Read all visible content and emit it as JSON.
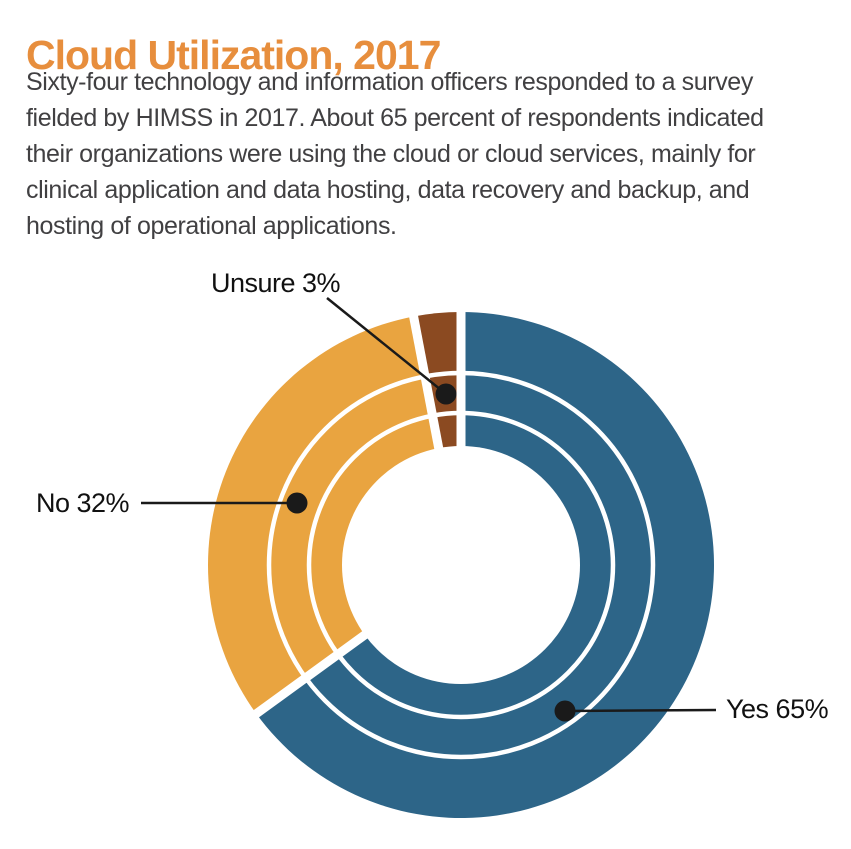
{
  "title": "Cloud Utilization, 2017",
  "description_lines": [
    "Sixty-four technology and information officers responded to a survey",
    "fielded by HIMSS in 2017. About 65 percent of respondents indicated",
    "their organizations were using the cloud or cloud services, mainly for",
    "clinical application and data hosting, data recovery and backup, and",
    "hosting of operational applications."
  ],
  "chart_data": {
    "type": "pie",
    "style": "donut-triple-ring",
    "title": "Cloud Utilization, 2017",
    "unit": "percent",
    "start_angle_deg": 0,
    "direction": "clockwise",
    "segments": [
      {
        "label": "Yes",
        "value": 65,
        "color": "#2D6588",
        "callout": "Yes 65%"
      },
      {
        "label": "No",
        "value": 32,
        "color": "#E9A440",
        "callout": "No 32%"
      },
      {
        "label": "Unsure",
        "value": 3,
        "color": "#8B4A21",
        "callout": "Unsure 3%"
      }
    ],
    "legend_position": "callouts-with-leader-lines",
    "grid": false
  },
  "colors": {
    "title_text": "#E78E3D",
    "body_text": "#414042",
    "callout_text": "#111111",
    "leader_line": "#1A1A1A",
    "background": "#FFFFFF"
  }
}
